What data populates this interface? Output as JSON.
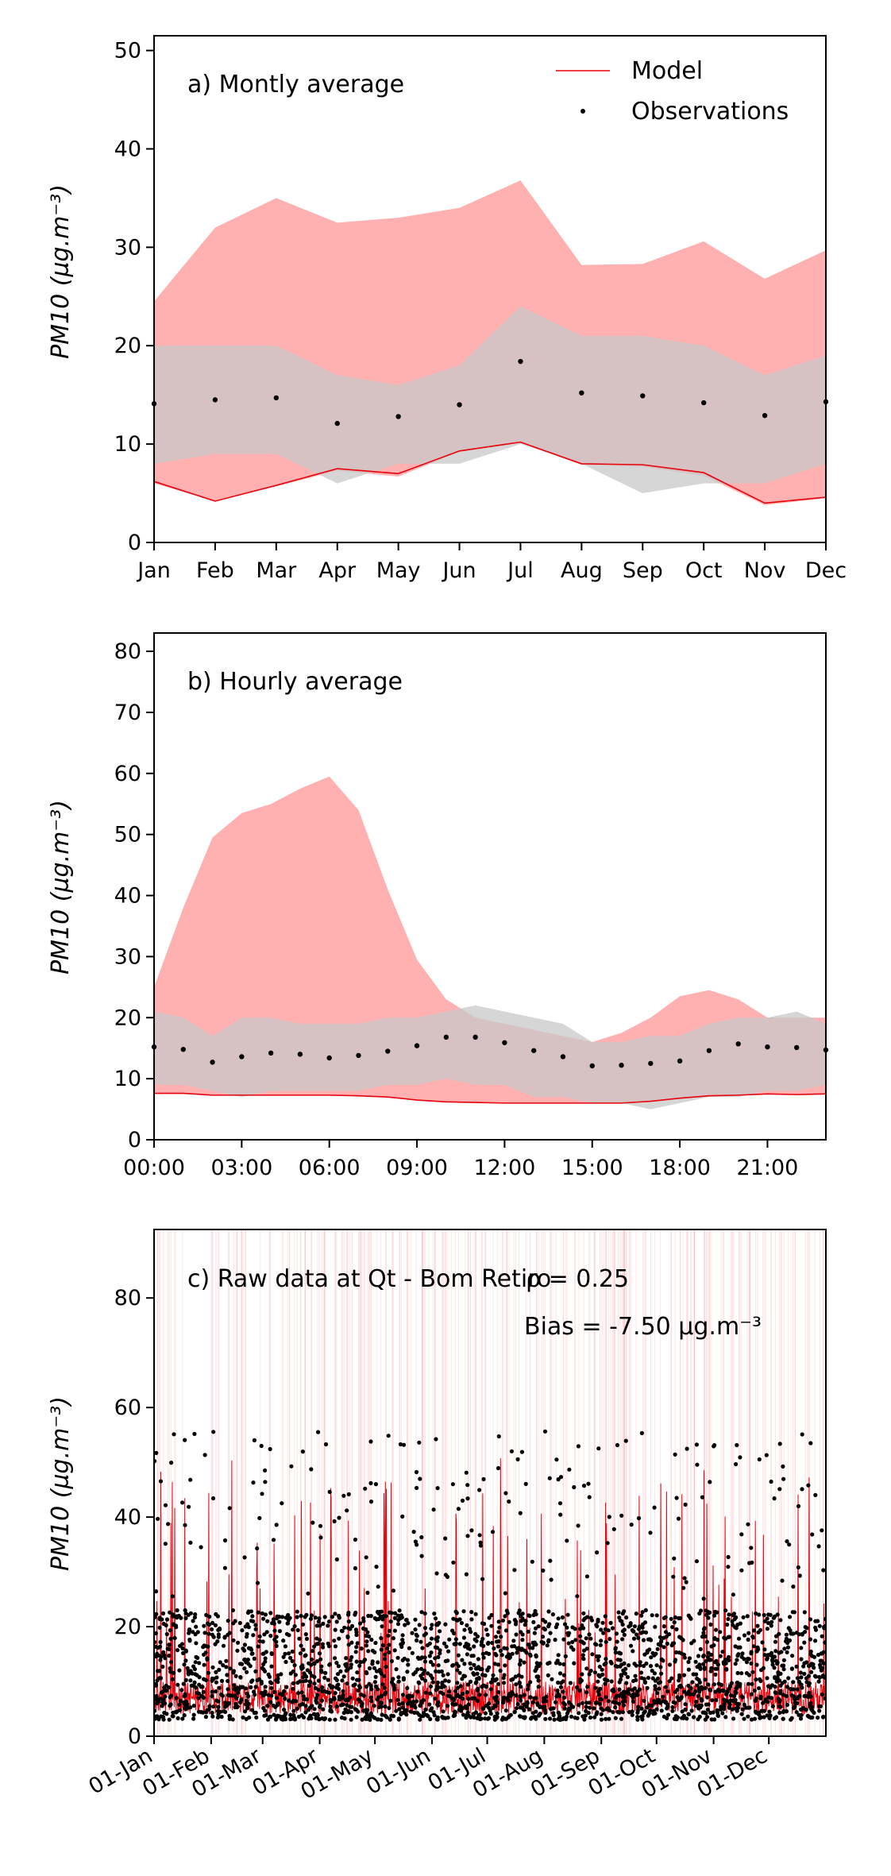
{
  "chart_data": [
    {
      "type": "area",
      "panel": "a",
      "annotation": "a) Montly average",
      "ylabel": "PM10 (µg.m⁻³)",
      "ylim": [
        0,
        51.5
      ],
      "yticks": [
        0,
        10,
        20,
        30,
        40,
        50
      ],
      "categories": [
        "Jan",
        "Feb",
        "Mar",
        "Apr",
        "May",
        "Jun",
        "Jul",
        "Aug",
        "Sep",
        "Oct",
        "Nov",
        "Dec"
      ],
      "legend": {
        "model": "Model",
        "observations": "Observations"
      },
      "legend_position": "top-right",
      "series": [
        {
          "name": "Model",
          "band_upper": [
            24.5,
            32,
            35,
            32.5,
            33,
            34,
            36.8,
            28.2,
            28.3,
            30.6,
            26.8,
            29.7
          ],
          "line": [
            6.2,
            4.2,
            5.8,
            7.5,
            7.0,
            9.3,
            10.2,
            8.0,
            7.9,
            7.1,
            4.0,
            4.6
          ],
          "band_lower": [
            6.0,
            4.2,
            5.7,
            7.3,
            6.7,
            9.2,
            10.1,
            7.9,
            7.7,
            6.8,
            3.8,
            4.5
          ]
        },
        {
          "name": "Observations",
          "points": [
            14.1,
            14.5,
            14.7,
            12.1,
            12.8,
            14.0,
            18.4,
            15.2,
            14.9,
            14.2,
            12.9,
            14.3
          ],
          "band_upper": [
            20.0,
            20.0,
            20.0,
            17.0,
            16.0,
            18.0,
            24.0,
            21.0,
            21.0,
            20.0,
            17.0,
            19.0
          ],
          "band_lower": [
            8.0,
            9.0,
            9.0,
            6.0,
            8.0,
            8.0,
            10.0,
            8.0,
            5.0,
            6.0,
            6.0,
            8.0
          ]
        }
      ]
    },
    {
      "type": "area",
      "panel": "b",
      "annotation": "b) Hourly average",
      "ylabel": "PM10 (µg.m⁻³)",
      "ylim": [
        0,
        83
      ],
      "yticks": [
        0,
        10,
        20,
        30,
        40,
        50,
        60,
        70,
        80
      ],
      "xticks": [
        "00:00",
        "03:00",
        "06:00",
        "09:00",
        "12:00",
        "15:00",
        "18:00",
        "21:00"
      ],
      "x": [
        0,
        1,
        2,
        3,
        4,
        5,
        6,
        7,
        8,
        9,
        10,
        11,
        12,
        13,
        14,
        15,
        16,
        17,
        18,
        19,
        20,
        21,
        22,
        23
      ],
      "series": [
        {
          "name": "Model",
          "band_upper": [
            25,
            38,
            49.5,
            53.5,
            55,
            57.5,
            59.5,
            54,
            41,
            29.5,
            23,
            20,
            19,
            18,
            17,
            16,
            17.5,
            20,
            23.5,
            24.5,
            23,
            20,
            20,
            20
          ],
          "line": [
            7.6,
            7.6,
            7.3,
            7.3,
            7.3,
            7.3,
            7.3,
            7.2,
            7.0,
            6.5,
            6.2,
            6.1,
            6.0,
            6.0,
            6.0,
            6.0,
            6.0,
            6.3,
            6.8,
            7.2,
            7.3,
            7.5,
            7.4,
            7.5
          ]
        },
        {
          "name": "Observations",
          "points": [
            15.2,
            14.8,
            12.7,
            13.6,
            14.2,
            14.0,
            13.4,
            13.8,
            14.5,
            15.4,
            16.8,
            16.8,
            15.9,
            14.6,
            13.6,
            12.1,
            12.2,
            12.5,
            12.9,
            14.6,
            15.7,
            15.2,
            15.1,
            14.7
          ],
          "band_upper": [
            21,
            20,
            17,
            20,
            20,
            19,
            19,
            19,
            20,
            20,
            21,
            22,
            21,
            20,
            19,
            16,
            16,
            17,
            17,
            19,
            20,
            20,
            21,
            19
          ],
          "band_lower": [
            9,
            9,
            8,
            7,
            8,
            8,
            8,
            8,
            9,
            9,
            10,
            9,
            9,
            7,
            7,
            6,
            6,
            5,
            6,
            7,
            7,
            8,
            8,
            9
          ]
        }
      ]
    },
    {
      "type": "scatter",
      "panel": "c",
      "annotation": "c) Raw data at Qt - Bom Retiro",
      "stat_r": "ρ = 0.25",
      "stat_bias": "Bias = -7.50 µg.m⁻³",
      "ylabel": "PM10 (µg.m⁻³)",
      "ylim": [
        0,
        92.5
      ],
      "yticks": [
        0,
        20,
        40,
        60,
        80
      ],
      "xticks": [
        "01-Jan",
        "01-Feb",
        "01-Mar",
        "01-Apr",
        "01-May",
        "01-Jun",
        "01-Jul",
        "01-Aug",
        "01-Sep",
        "01-Oct",
        "01-Nov",
        "01-Dec"
      ],
      "xlim_days": [
        0,
        365
      ],
      "series": [
        {
          "name": "Model",
          "values": "hourly model series (approx. 0–55, mostly below 20)"
        },
        {
          "name": "Observations",
          "values": "hourly observations (approx. 1–56)"
        }
      ]
    }
  ],
  "colors": {
    "model_band": "#ffb0b0",
    "model_line": "#e8000b",
    "obs_band": "#c8c8c8",
    "obs_point": "#000000"
  }
}
